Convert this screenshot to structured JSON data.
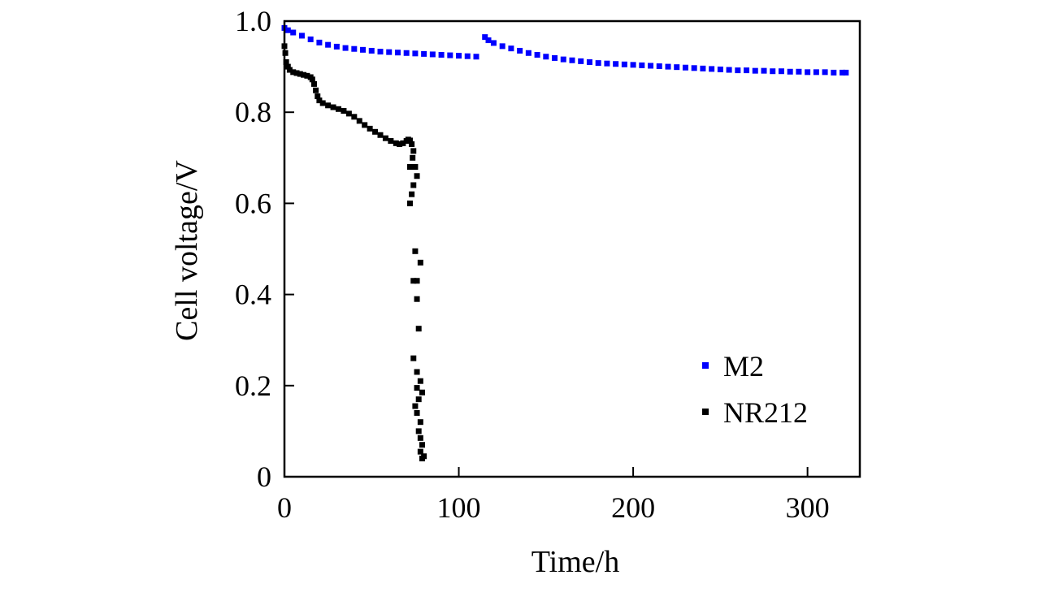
{
  "chart_data": {
    "type": "scatter",
    "title": "",
    "xlabel": "Time/h",
    "ylabel": "Cell voltage/V",
    "xlim": [
      0,
      330
    ],
    "ylim": [
      0,
      1.0
    ],
    "x_ticks": [
      0,
      100,
      200,
      300
    ],
    "x_tick_labels": [
      "0",
      "100",
      "200",
      "300"
    ],
    "y_ticks": [
      0,
      0.2,
      0.4,
      0.6,
      0.8,
      1.0
    ],
    "y_tick_labels": [
      "0",
      "0.2",
      "0.4",
      "0.6",
      "0.8",
      "1.0"
    ],
    "grid": false,
    "legend_position": "bottom-right",
    "series": [
      {
        "name": "M2",
        "color": "#0000ff",
        "marker": "square",
        "points": [
          [
            0,
            0.985
          ],
          [
            2,
            0.98
          ],
          [
            5,
            0.975
          ],
          [
            10,
            0.968
          ],
          [
            15,
            0.96
          ],
          [
            20,
            0.953
          ],
          [
            25,
            0.948
          ],
          [
            30,
            0.944
          ],
          [
            35,
            0.941
          ],
          [
            40,
            0.939
          ],
          [
            45,
            0.937
          ],
          [
            50,
            0.935
          ],
          [
            55,
            0.933
          ],
          [
            60,
            0.932
          ],
          [
            65,
            0.931
          ],
          [
            70,
            0.93
          ],
          [
            75,
            0.929
          ],
          [
            80,
            0.928
          ],
          [
            85,
            0.927
          ],
          [
            90,
            0.926
          ],
          [
            95,
            0.925
          ],
          [
            100,
            0.924
          ],
          [
            105,
            0.923
          ],
          [
            110,
            0.922
          ],
          [
            115,
            0.965
          ],
          [
            117,
            0.958
          ],
          [
            120,
            0.952
          ],
          [
            125,
            0.945
          ],
          [
            130,
            0.94
          ],
          [
            135,
            0.935
          ],
          [
            140,
            0.93
          ],
          [
            145,
            0.926
          ],
          [
            150,
            0.922
          ],
          [
            155,
            0.919
          ],
          [
            160,
            0.916
          ],
          [
            165,
            0.914
          ],
          [
            170,
            0.912
          ],
          [
            175,
            0.91
          ],
          [
            180,
            0.908
          ],
          [
            185,
            0.907
          ],
          [
            190,
            0.906
          ],
          [
            195,
            0.905
          ],
          [
            200,
            0.904
          ],
          [
            205,
            0.903
          ],
          [
            210,
            0.902
          ],
          [
            215,
            0.901
          ],
          [
            220,
            0.9
          ],
          [
            225,
            0.899
          ],
          [
            230,
            0.898
          ],
          [
            235,
            0.897
          ],
          [
            240,
            0.896
          ],
          [
            245,
            0.895
          ],
          [
            250,
            0.894
          ],
          [
            255,
            0.893
          ],
          [
            260,
            0.892
          ],
          [
            265,
            0.892
          ],
          [
            270,
            0.891
          ],
          [
            275,
            0.891
          ],
          [
            280,
            0.89
          ],
          [
            285,
            0.89
          ],
          [
            290,
            0.889
          ],
          [
            295,
            0.889
          ],
          [
            300,
            0.888
          ],
          [
            305,
            0.888
          ],
          [
            310,
            0.888
          ],
          [
            315,
            0.887
          ],
          [
            320,
            0.887
          ],
          [
            322,
            0.887
          ]
        ]
      },
      {
        "name": "NR212",
        "color": "#000000",
        "marker": "square",
        "points": [
          [
            0,
            0.945
          ],
          [
            0.5,
            0.93
          ],
          [
            1,
            0.91
          ],
          [
            2,
            0.9
          ],
          [
            3,
            0.893
          ],
          [
            5,
            0.888
          ],
          [
            7,
            0.886
          ],
          [
            9,
            0.884
          ],
          [
            11,
            0.882
          ],
          [
            13,
            0.88
          ],
          [
            15,
            0.877
          ],
          [
            16,
            0.872
          ],
          [
            17,
            0.862
          ],
          [
            18,
            0.848
          ],
          [
            19,
            0.835
          ],
          [
            20,
            0.826
          ],
          [
            22,
            0.82
          ],
          [
            25,
            0.815
          ],
          [
            28,
            0.811
          ],
          [
            31,
            0.807
          ],
          [
            34,
            0.803
          ],
          [
            37,
            0.797
          ],
          [
            40,
            0.79
          ],
          [
            43,
            0.781
          ],
          [
            46,
            0.772
          ],
          [
            49,
            0.764
          ],
          [
            52,
            0.757
          ],
          [
            55,
            0.75
          ],
          [
            58,
            0.743
          ],
          [
            61,
            0.737
          ],
          [
            64,
            0.732
          ],
          [
            66,
            0.73
          ],
          [
            68,
            0.732
          ],
          [
            70,
            0.737
          ],
          [
            71,
            0.74
          ],
          [
            72,
            0.738
          ],
          [
            73,
            0.73
          ],
          [
            74,
            0.715
          ],
          [
            73.5,
            0.7
          ],
          [
            72,
            0.68
          ],
          [
            75,
            0.68
          ],
          [
            76,
            0.66
          ],
          [
            74,
            0.64
          ],
          [
            73,
            0.62
          ],
          [
            72,
            0.6
          ],
          [
            75,
            0.495
          ],
          [
            78,
            0.47
          ],
          [
            74,
            0.43
          ],
          [
            76,
            0.43
          ],
          [
            76,
            0.39
          ],
          [
            77,
            0.325
          ],
          [
            74,
            0.26
          ],
          [
            76,
            0.23
          ],
          [
            78,
            0.21
          ],
          [
            76,
            0.195
          ],
          [
            79,
            0.185
          ],
          [
            77,
            0.17
          ],
          [
            75,
            0.155
          ],
          [
            76,
            0.14
          ],
          [
            78,
            0.12
          ],
          [
            77,
            0.1
          ],
          [
            78,
            0.085
          ],
          [
            79,
            0.07
          ],
          [
            78,
            0.055
          ],
          [
            80,
            0.045
          ],
          [
            79,
            0.04
          ]
        ]
      }
    ]
  }
}
